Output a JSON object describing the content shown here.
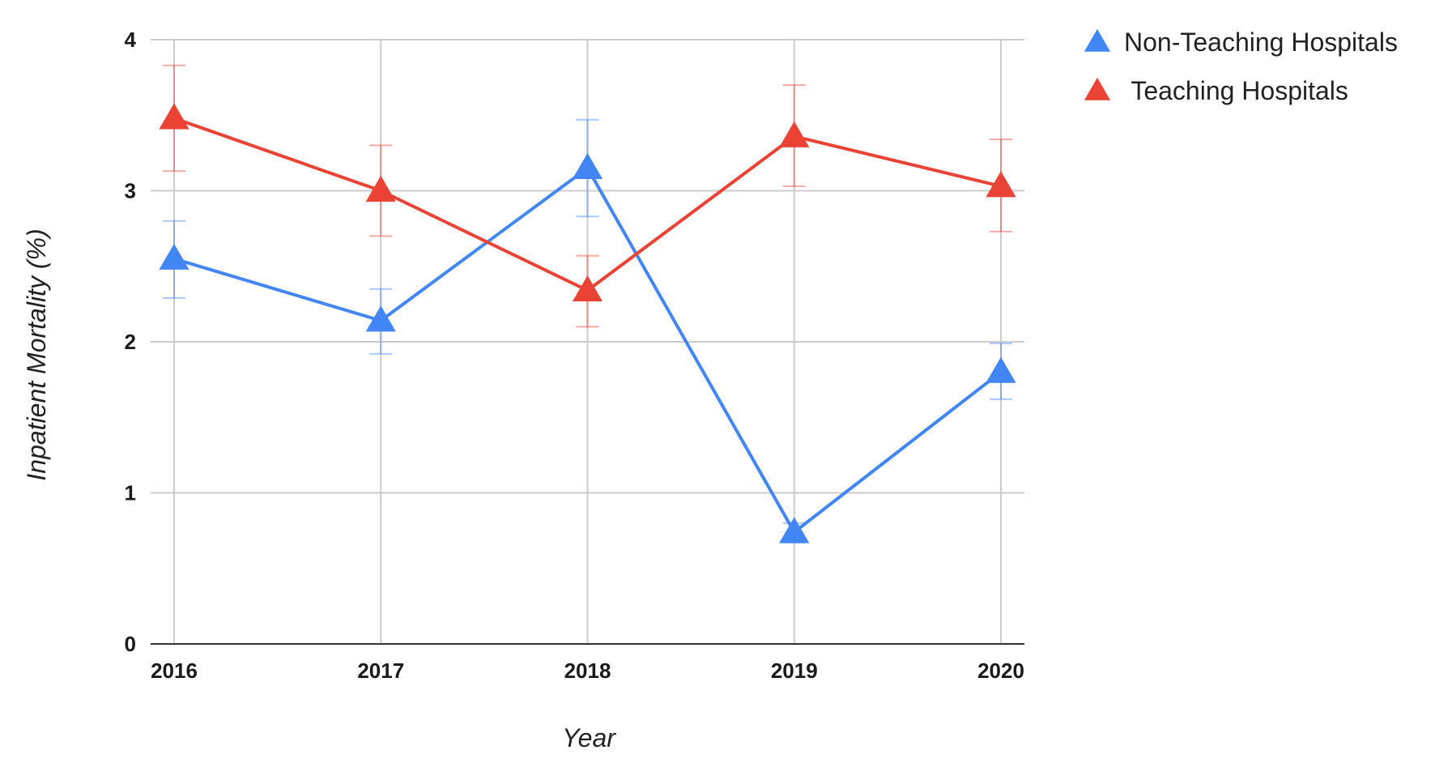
{
  "chart_data": {
    "type": "line",
    "categories": [
      "2016",
      "2017",
      "2018",
      "2019",
      "2020"
    ],
    "xlabel": "Year",
    "ylabel": "Inpatient Mortality (%)",
    "ylim": [
      0,
      4
    ],
    "yticks": [
      "0",
      "1",
      "2",
      "3",
      "4"
    ],
    "grid": true,
    "legend_position": "top-right",
    "marker": "triangle",
    "series": [
      {
        "name": "Non-Teaching Hospitals",
        "color": "#4285f4",
        "values": [
          2.55,
          2.14,
          3.15,
          0.74,
          1.8
        ],
        "error_low": [
          2.29,
          1.92,
          2.83,
          0.67,
          1.62
        ],
        "error_high": [
          2.8,
          2.35,
          3.47,
          0.8,
          1.99
        ]
      },
      {
        "name": " Teaching Hospitals",
        "color": "#ea4335",
        "values": [
          3.48,
          3.0,
          2.34,
          3.36,
          3.03
        ],
        "error_low": [
          3.13,
          2.7,
          2.1,
          3.03,
          2.73
        ],
        "error_high": [
          3.83,
          3.3,
          2.57,
          3.7,
          3.34
        ]
      }
    ]
  }
}
